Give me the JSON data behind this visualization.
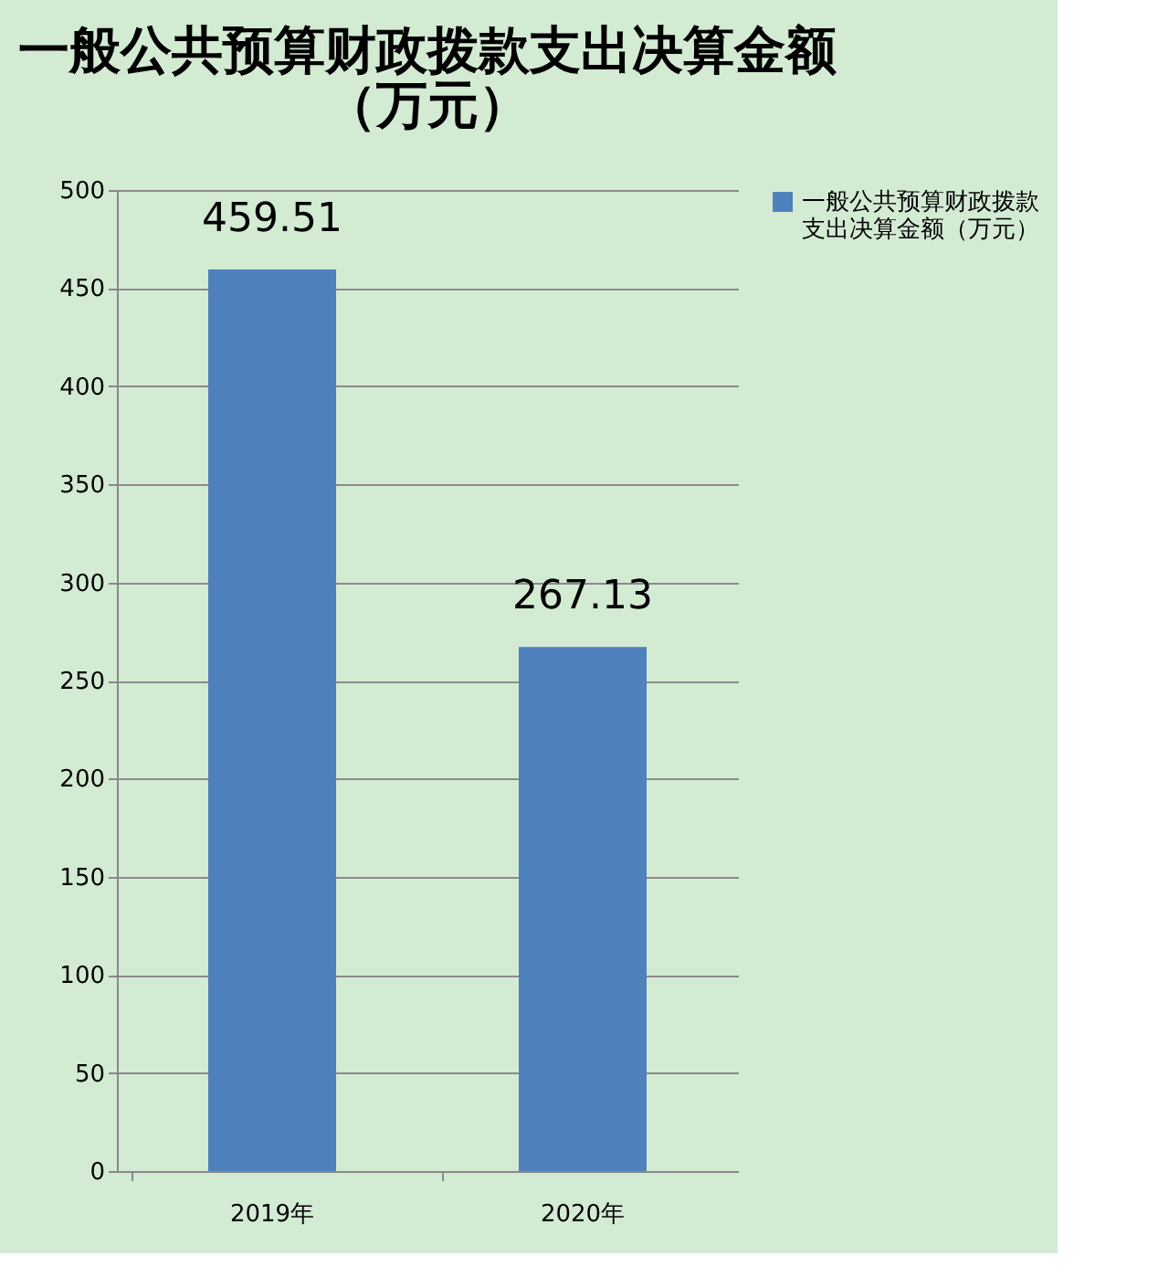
{
  "chart_data": {
    "type": "bar",
    "title": "一般公共预算财政拨款支出决算金额（万元）",
    "categories": [
      "2019年",
      "2020年"
    ],
    "series": [
      {
        "name": "一般公共预算财政拨款支出决算金额（万元）",
        "color": "#4f81bd",
        "values": [
          459.51,
          267.13
        ]
      }
    ],
    "ylim": [
      0,
      500
    ],
    "yticks": [
      0,
      50,
      100,
      150,
      200,
      250,
      300,
      350,
      400,
      450,
      500
    ],
    "grid": "y",
    "legend": "right",
    "data_labels": true
  }
}
